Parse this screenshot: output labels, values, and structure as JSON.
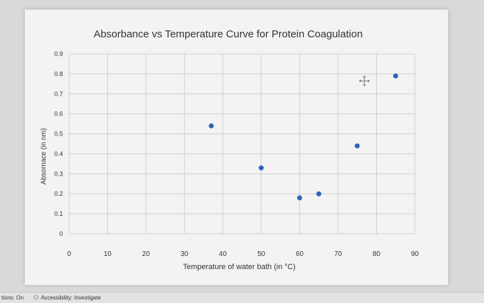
{
  "chart_data": {
    "type": "scatter",
    "title": "Absorbance vs Temperature Curve for Protein Coagulation",
    "xlabel": "Temperature of water bath (in °C)",
    "ylabel": "Absornace (in nm)",
    "xlim": [
      0,
      90
    ],
    "ylim": [
      0,
      0.9
    ],
    "xticks": [
      "0",
      "10",
      "20",
      "30",
      "40",
      "50",
      "60",
      "70",
      "80",
      "90"
    ],
    "yticks": [
      "0",
      "0.1",
      "0.2",
      "0.3",
      "0.4",
      "0.5",
      "0.6",
      "0.7",
      "0.8",
      "0.9"
    ],
    "grid": true,
    "legend": "none",
    "marker_color": "#2e63b8",
    "points": [
      {
        "x": 37,
        "y": 0.54
      },
      {
        "x": 50,
        "y": 0.33
      },
      {
        "x": 60,
        "y": 0.18
      },
      {
        "x": 65,
        "y": 0.2
      },
      {
        "x": 75,
        "y": 0.44
      },
      {
        "x": 85,
        "y": 0.79
      }
    ]
  },
  "status_bar": {
    "left_text": "tions: On",
    "accessibility_icon": "accessibility-icon",
    "accessibility_text": "Accessibility: Investigate"
  }
}
